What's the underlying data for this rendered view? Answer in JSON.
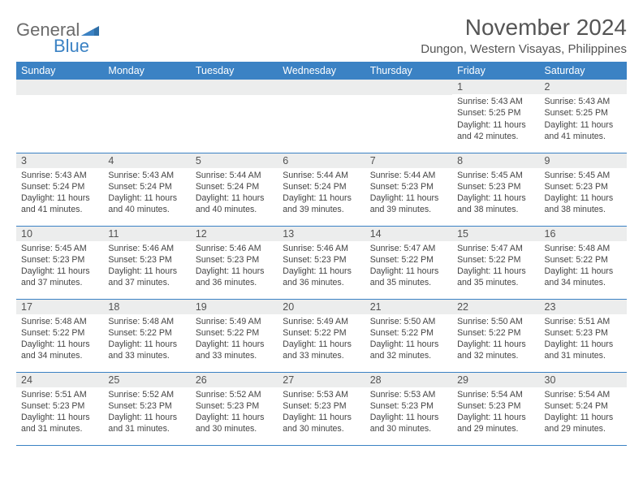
{
  "logo": {
    "text1": "General",
    "text2": "Blue"
  },
  "title": "November 2024",
  "location": "Dungon, Western Visayas, Philippines",
  "colors": {
    "header_bg": "#3b82c4",
    "header_text": "#ffffff",
    "daynum_bg": "#eceded",
    "border": "#3b82c4",
    "logo_gray": "#6b6b6b",
    "logo_blue": "#3b82c4"
  },
  "weekdays": [
    "Sunday",
    "Monday",
    "Tuesday",
    "Wednesday",
    "Thursday",
    "Friday",
    "Saturday"
  ],
  "weeks": [
    [
      {
        "n": "",
        "sr": "",
        "ss": "",
        "dl": ""
      },
      {
        "n": "",
        "sr": "",
        "ss": "",
        "dl": ""
      },
      {
        "n": "",
        "sr": "",
        "ss": "",
        "dl": ""
      },
      {
        "n": "",
        "sr": "",
        "ss": "",
        "dl": ""
      },
      {
        "n": "",
        "sr": "",
        "ss": "",
        "dl": ""
      },
      {
        "n": "1",
        "sr": "Sunrise: 5:43 AM",
        "ss": "Sunset: 5:25 PM",
        "dl": "Daylight: 11 hours and 42 minutes."
      },
      {
        "n": "2",
        "sr": "Sunrise: 5:43 AM",
        "ss": "Sunset: 5:25 PM",
        "dl": "Daylight: 11 hours and 41 minutes."
      }
    ],
    [
      {
        "n": "3",
        "sr": "Sunrise: 5:43 AM",
        "ss": "Sunset: 5:24 PM",
        "dl": "Daylight: 11 hours and 41 minutes."
      },
      {
        "n": "4",
        "sr": "Sunrise: 5:43 AM",
        "ss": "Sunset: 5:24 PM",
        "dl": "Daylight: 11 hours and 40 minutes."
      },
      {
        "n": "5",
        "sr": "Sunrise: 5:44 AM",
        "ss": "Sunset: 5:24 PM",
        "dl": "Daylight: 11 hours and 40 minutes."
      },
      {
        "n": "6",
        "sr": "Sunrise: 5:44 AM",
        "ss": "Sunset: 5:24 PM",
        "dl": "Daylight: 11 hours and 39 minutes."
      },
      {
        "n": "7",
        "sr": "Sunrise: 5:44 AM",
        "ss": "Sunset: 5:23 PM",
        "dl": "Daylight: 11 hours and 39 minutes."
      },
      {
        "n": "8",
        "sr": "Sunrise: 5:45 AM",
        "ss": "Sunset: 5:23 PM",
        "dl": "Daylight: 11 hours and 38 minutes."
      },
      {
        "n": "9",
        "sr": "Sunrise: 5:45 AM",
        "ss": "Sunset: 5:23 PM",
        "dl": "Daylight: 11 hours and 38 minutes."
      }
    ],
    [
      {
        "n": "10",
        "sr": "Sunrise: 5:45 AM",
        "ss": "Sunset: 5:23 PM",
        "dl": "Daylight: 11 hours and 37 minutes."
      },
      {
        "n": "11",
        "sr": "Sunrise: 5:46 AM",
        "ss": "Sunset: 5:23 PM",
        "dl": "Daylight: 11 hours and 37 minutes."
      },
      {
        "n": "12",
        "sr": "Sunrise: 5:46 AM",
        "ss": "Sunset: 5:23 PM",
        "dl": "Daylight: 11 hours and 36 minutes."
      },
      {
        "n": "13",
        "sr": "Sunrise: 5:46 AM",
        "ss": "Sunset: 5:23 PM",
        "dl": "Daylight: 11 hours and 36 minutes."
      },
      {
        "n": "14",
        "sr": "Sunrise: 5:47 AM",
        "ss": "Sunset: 5:22 PM",
        "dl": "Daylight: 11 hours and 35 minutes."
      },
      {
        "n": "15",
        "sr": "Sunrise: 5:47 AM",
        "ss": "Sunset: 5:22 PM",
        "dl": "Daylight: 11 hours and 35 minutes."
      },
      {
        "n": "16",
        "sr": "Sunrise: 5:48 AM",
        "ss": "Sunset: 5:22 PM",
        "dl": "Daylight: 11 hours and 34 minutes."
      }
    ],
    [
      {
        "n": "17",
        "sr": "Sunrise: 5:48 AM",
        "ss": "Sunset: 5:22 PM",
        "dl": "Daylight: 11 hours and 34 minutes."
      },
      {
        "n": "18",
        "sr": "Sunrise: 5:48 AM",
        "ss": "Sunset: 5:22 PM",
        "dl": "Daylight: 11 hours and 33 minutes."
      },
      {
        "n": "19",
        "sr": "Sunrise: 5:49 AM",
        "ss": "Sunset: 5:22 PM",
        "dl": "Daylight: 11 hours and 33 minutes."
      },
      {
        "n": "20",
        "sr": "Sunrise: 5:49 AM",
        "ss": "Sunset: 5:22 PM",
        "dl": "Daylight: 11 hours and 33 minutes."
      },
      {
        "n": "21",
        "sr": "Sunrise: 5:50 AM",
        "ss": "Sunset: 5:22 PM",
        "dl": "Daylight: 11 hours and 32 minutes."
      },
      {
        "n": "22",
        "sr": "Sunrise: 5:50 AM",
        "ss": "Sunset: 5:22 PM",
        "dl": "Daylight: 11 hours and 32 minutes."
      },
      {
        "n": "23",
        "sr": "Sunrise: 5:51 AM",
        "ss": "Sunset: 5:23 PM",
        "dl": "Daylight: 11 hours and 31 minutes."
      }
    ],
    [
      {
        "n": "24",
        "sr": "Sunrise: 5:51 AM",
        "ss": "Sunset: 5:23 PM",
        "dl": "Daylight: 11 hours and 31 minutes."
      },
      {
        "n": "25",
        "sr": "Sunrise: 5:52 AM",
        "ss": "Sunset: 5:23 PM",
        "dl": "Daylight: 11 hours and 31 minutes."
      },
      {
        "n": "26",
        "sr": "Sunrise: 5:52 AM",
        "ss": "Sunset: 5:23 PM",
        "dl": "Daylight: 11 hours and 30 minutes."
      },
      {
        "n": "27",
        "sr": "Sunrise: 5:53 AM",
        "ss": "Sunset: 5:23 PM",
        "dl": "Daylight: 11 hours and 30 minutes."
      },
      {
        "n": "28",
        "sr": "Sunrise: 5:53 AM",
        "ss": "Sunset: 5:23 PM",
        "dl": "Daylight: 11 hours and 30 minutes."
      },
      {
        "n": "29",
        "sr": "Sunrise: 5:54 AM",
        "ss": "Sunset: 5:23 PM",
        "dl": "Daylight: 11 hours and 29 minutes."
      },
      {
        "n": "30",
        "sr": "Sunrise: 5:54 AM",
        "ss": "Sunset: 5:24 PM",
        "dl": "Daylight: 11 hours and 29 minutes."
      }
    ]
  ]
}
